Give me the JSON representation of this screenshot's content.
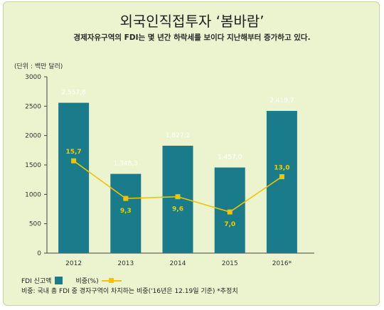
{
  "title": "외국인직접투자 ‘봄바람’",
  "subtitle": "경제자유구역의 FDI는 몇 년간 하락세를 보이다 지난해부터 증가하고 있다.",
  "unit_label": "(단위 : 백만 달러)",
  "legend": {
    "bar_label": "FDI 신고액",
    "line_label": "비중(%)"
  },
  "note": "비중: 국내 총 FDI 중 경자구역이 차지하는 비중('16년은 12.19일 기준) *추정치",
  "colors": {
    "bar": "#1a7c8a",
    "line": "#f2c400",
    "background": "#ebf3cf"
  },
  "chart_data": {
    "type": "bar",
    "categories": [
      "2012",
      "2013",
      "2014",
      "2015",
      "2016*"
    ],
    "series": [
      {
        "name": "FDI 신고액",
        "type": "bar",
        "values": [
          2557.8,
          1348.3,
          1827.2,
          1457.0,
          2419.7
        ],
        "labels": [
          "2,557,8",
          "1,348,3",
          "1,827,2",
          "1,457,0",
          "2,419,7"
        ]
      },
      {
        "name": "비중(%)",
        "type": "line",
        "values": [
          15.7,
          9.3,
          9.6,
          7.0,
          13.0
        ],
        "labels": [
          "15,7",
          "9,3",
          "9,6",
          "7,0",
          "13,0"
        ]
      }
    ],
    "yticks": [
      "0",
      "500",
      "1000",
      "1500",
      "2000",
      "2500",
      "3000"
    ],
    "ylim": [
      0,
      3000
    ],
    "grid": false,
    "legend_position": "bottom-left"
  }
}
